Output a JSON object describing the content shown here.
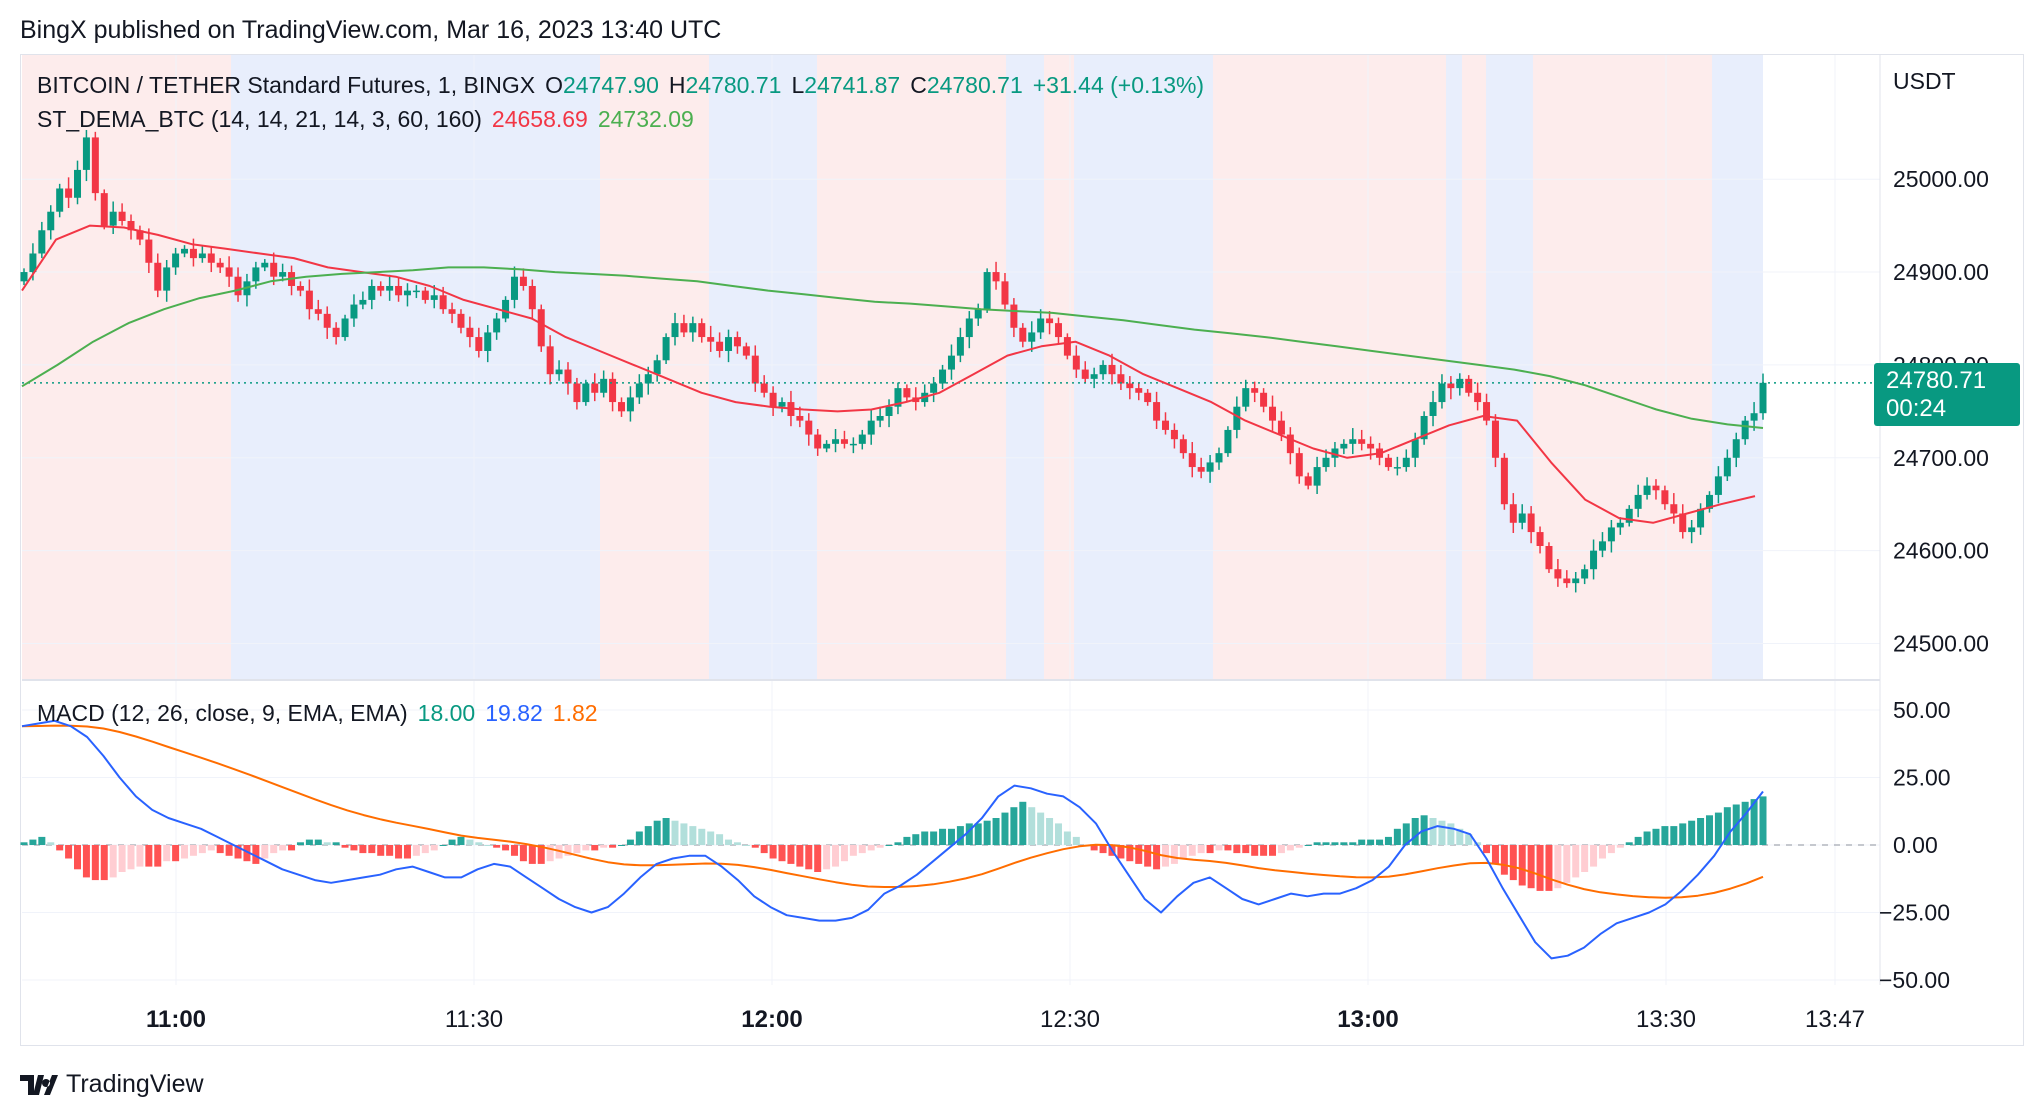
{
  "header": {
    "published": "BingX published on TradingView.com, Mar 16, 2023 13:40 UTC"
  },
  "main_legend": {
    "symbol": "BITCOIN / TETHER Standard Futures, 1, BINGX",
    "open_label": "O",
    "open": "24747.90",
    "high_label": "H",
    "high": "24780.71",
    "low_label": "L",
    "low": "24741.87",
    "close_label": "C",
    "close": "24780.71",
    "change": "+31.44 (+0.13%)"
  },
  "st_legend": {
    "name": "ST_DEMA_BTC (14, 14, 21, 14, 3, 60, 160)",
    "value1": "24658.69",
    "value2": "24732.09"
  },
  "macd_legend": {
    "name": "MACD (12, 26, close, 9, EMA, EMA)",
    "hist": "18.00",
    "macd": "19.82",
    "signal": "1.82"
  },
  "price_axis": {
    "unit": "USDT",
    "last_price": "24780.71",
    "countdown": "00:24"
  },
  "footer": {
    "brand": "TradingView"
  },
  "colors": {
    "up": "#089981",
    "down": "#f23645",
    "red_line": "#f23645",
    "green_line": "#4caf50",
    "macd_line": "#2962ff",
    "signal_line": "#ff6d00",
    "bg_red": "#fdecec",
    "bg_blue": "#e8eefc"
  },
  "chart_data": [
    {
      "type": "candlestick",
      "title": "BITCOIN / TETHER Standard Futures, 1, BINGX",
      "xlabel": "",
      "ylabel": "USDT",
      "ylim": [
        24430,
        25100
      ],
      "x_ticks": [
        "11:00",
        "11:30",
        "12:00",
        "12:30",
        "13:00",
        "13:30",
        "13:47"
      ],
      "y_ticks": [
        "24500.00",
        "24600.00",
        "24700.00",
        "24800.00",
        "24900.00",
        "25000.00"
      ],
      "closes": [
        24900,
        24920,
        24945,
        24965,
        24990,
        24980,
        25010,
        25045,
        24985,
        24950,
        24965,
        24955,
        24945,
        24935,
        24910,
        24880,
        24905,
        24920,
        24925,
        24915,
        24920,
        24910,
        24905,
        24895,
        24875,
        24890,
        24905,
        24910,
        24895,
        24900,
        24885,
        24880,
        24860,
        24855,
        24840,
        24830,
        24850,
        24865,
        24870,
        24885,
        24880,
        24885,
        24875,
        24880,
        24880,
        24870,
        24875,
        24860,
        24855,
        24840,
        24830,
        24815,
        24835,
        24850,
        24870,
        24895,
        24885,
        24860,
        24820,
        24790,
        24795,
        24780,
        24760,
        24780,
        24770,
        24785,
        24760,
        24750,
        24765,
        24780,
        24790,
        24805,
        24830,
        24845,
        24835,
        24845,
        24830,
        24825,
        24815,
        24830,
        24820,
        24810,
        24780,
        24770,
        24755,
        24760,
        24745,
        24740,
        24725,
        24710,
        24715,
        24720,
        24715,
        24715,
        24725,
        24740,
        24745,
        24755,
        24775,
        24765,
        24760,
        24770,
        24780,
        24795,
        24810,
        24830,
        24850,
        24860,
        24900,
        24890,
        24865,
        24840,
        24825,
        24835,
        24850,
        24845,
        24830,
        24810,
        24795,
        24785,
        24790,
        24800,
        24790,
        24780,
        24775,
        24770,
        24760,
        24740,
        24730,
        24720,
        24705,
        24690,
        24685,
        24695,
        24705,
        24730,
        24755,
        24775,
        24770,
        24755,
        24740,
        24725,
        24705,
        24680,
        24670,
        24690,
        24700,
        24710,
        24715,
        24720,
        24715,
        24710,
        24700,
        24690,
        24690,
        24700,
        24720,
        24745,
        24760,
        24780,
        24775,
        24785,
        24770,
        24760,
        24740,
        24700,
        24650,
        24630,
        24640,
        24620,
        24605,
        24580,
        24570,
        24565,
        24570,
        24580,
        24600,
        24610,
        24625,
        24630,
        24645,
        24660,
        24670,
        24665,
        24650,
        24640,
        24620,
        24625,
        24645,
        24660,
        24680,
        24700,
        24720,
        24740,
        24748,
        24780.71
      ]
    },
    {
      "type": "line",
      "series": [
        {
          "name": "24658.69",
          "values": [
            24880,
            24935,
            24950,
            24948,
            24940,
            24930,
            24925,
            24920,
            24915,
            24905,
            24900,
            24895,
            24885,
            24870,
            24860,
            24850,
            24830,
            24815,
            24800,
            24785,
            24770,
            24760,
            24755,
            24752,
            24750,
            24752,
            24760,
            24770,
            24790,
            24810,
            24820,
            24825,
            24810,
            24790,
            24775,
            24760,
            24740,
            24725,
            24710,
            24700,
            24705,
            24720,
            24735,
            24745,
            24740,
            24695,
            24655,
            24635,
            24630,
            24640,
            24650,
            24658.69
          ]
        },
        {
          "name": "24732.09",
          "values": [
            24777,
            24800,
            24825,
            24845,
            24860,
            24872,
            24880,
            24890,
            24895,
            24898,
            24900,
            24902,
            24905,
            24905,
            24903,
            24900,
            24898,
            24896,
            24893,
            24890,
            24885,
            24880,
            24876,
            24872,
            24868,
            24866,
            24863,
            24860,
            24858,
            24856,
            24852,
            24848,
            24843,
            24838,
            24834,
            24830,
            24825,
            24820,
            24815,
            24810,
            24805,
            24800,
            24795,
            24788,
            24778,
            24765,
            24752,
            24742,
            24736,
            24732.09
          ]
        }
      ]
    },
    {
      "type": "bar+line",
      "title": "MACD (12, 26, close, 9, EMA, EMA)",
      "ylim": [
        -52,
        55
      ],
      "y_ticks": [
        "50.00",
        "25.00",
        "0.00",
        "−25.00",
        "−50.00"
      ],
      "histogram": [
        1,
        2,
        3,
        1,
        -2,
        -5,
        -9,
        -12,
        -13,
        -13,
        -12,
        -10,
        -9,
        -8,
        -8,
        -8,
        -6,
        -6,
        -5,
        -4,
        -3,
        -2,
        -3,
        -4,
        -5,
        -6,
        -7,
        -5,
        -3,
        -2,
        -2,
        1,
        2,
        2,
        1,
        1,
        -1,
        -2,
        -3,
        -3,
        -4,
        -4,
        -5,
        -5,
        -4,
        -3,
        -2,
        0,
        2,
        3,
        2,
        1,
        0,
        -1,
        -2,
        -4,
        -6,
        -7,
        -7,
        -6,
        -5,
        -4,
        -3,
        -2,
        -2,
        -1,
        -1,
        0,
        2,
        5,
        7,
        9,
        10,
        9,
        8,
        7,
        6,
        5,
        4,
        2,
        1,
        0,
        -1,
        -3,
        -5,
        -6,
        -7,
        -8,
        -9,
        -10,
        -9,
        -8,
        -6,
        -4,
        -3,
        -2,
        -1,
        0,
        1,
        3,
        4,
        5,
        5,
        6,
        6,
        7,
        8,
        8,
        9,
        10,
        12,
        14,
        16,
        14,
        12,
        10,
        8,
        5,
        3,
        0,
        -2,
        -3,
        -4,
        -5,
        -6,
        -7,
        -8,
        -9,
        -8,
        -7,
        -5,
        -4,
        -3,
        -3,
        -2,
        -2,
        -3,
        -3,
        -4,
        -4,
        -4,
        -3,
        -2,
        -1,
        0,
        1,
        1,
        1,
        1,
        1,
        2,
        2,
        2,
        3,
        6,
        8,
        10,
        11,
        10,
        9,
        8,
        6,
        4,
        1,
        -3,
        -7,
        -11,
        -13,
        -15,
        -16,
        -17,
        -17,
        -16,
        -14,
        -12,
        -10,
        -8,
        -5,
        -3,
        -1,
        1,
        3,
        5,
        6,
        7,
        7,
        8,
        9,
        10,
        11,
        12,
        14,
        15,
        16,
        17,
        18
      ],
      "macd": [
        44,
        45,
        46,
        44,
        40,
        33,
        25,
        18,
        13,
        10,
        8,
        6,
        3,
        0,
        -3,
        -6,
        -9,
        -11,
        -13,
        -14,
        -13,
        -12,
        -11,
        -9,
        -8,
        -10,
        -12,
        -12,
        -9,
        -7,
        -8,
        -12,
        -16,
        -20,
        -23,
        -25,
        -23,
        -18,
        -12,
        -7,
        -5,
        -4,
        -4,
        -8,
        -13,
        -19,
        -23,
        -26,
        -27,
        -28,
        -28,
        -27,
        -24,
        -18,
        -15,
        -11,
        -6,
        -1,
        4,
        10,
        18,
        22,
        21,
        19,
        18,
        14,
        8,
        -2,
        -11,
        -20,
        -25,
        -19,
        -14,
        -12,
        -16,
        -20,
        -22,
        -20,
        -18,
        -19,
        -18,
        -18,
        -16,
        -13,
        -8,
        0,
        5,
        7,
        6,
        4,
        -5,
        -16,
        -26,
        -36,
        -42,
        -41,
        -38,
        -33,
        -29,
        -27,
        -25,
        -22,
        -17,
        -11,
        -4,
        5,
        12,
        19.82
      ]
    }
  ]
}
